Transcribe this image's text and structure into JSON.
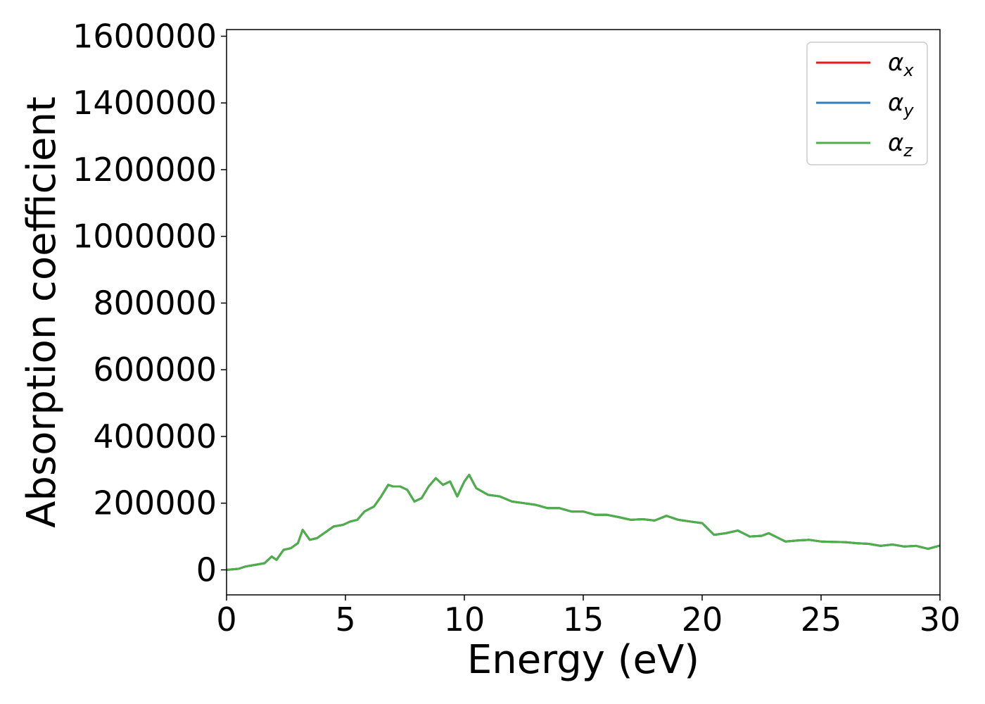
{
  "chart_data": {
    "type": "line",
    "title": "",
    "xlabel": "Energy (eV)",
    "ylabel": "Absorption coefficient",
    "xlim": [
      0,
      30
    ],
    "ylim": [
      -75000,
      1620000
    ],
    "xticks": [
      "0",
      "5",
      "10",
      "15",
      "20",
      "25",
      "30"
    ],
    "yticks": [
      "0",
      "200000",
      "400000",
      "600000",
      "800000",
      "1000000",
      "1200000",
      "1400000",
      "1600000"
    ],
    "grid": false,
    "legend_position": "top-right",
    "series": [
      {
        "name": "α_x",
        "label": "α",
        "sub": "x",
        "color": "#e41a1c",
        "x": [
          0,
          0.5,
          0.8,
          1.2,
          1.6,
          1.9,
          2.1,
          2.4,
          2.7,
          3.0,
          3.2,
          3.5,
          3.8,
          4.1,
          4.5,
          4.9,
          5.2,
          5.5,
          5.8,
          6.2,
          6.5,
          6.8,
          7.0,
          7.3,
          7.6,
          7.9,
          8.2,
          8.5,
          8.8,
          9.1,
          9.4,
          9.7,
          10.0,
          10.2,
          10.5,
          11.0,
          11.5,
          12.0,
          12.5,
          13.0,
          13.5,
          14.0,
          14.5,
          15.0,
          15.5,
          16.0,
          16.5,
          17.0,
          17.5,
          18.0,
          18.5,
          19.0,
          19.5,
          20.0,
          20.5,
          21.0,
          21.5,
          22.0,
          22.5,
          22.8,
          23.5,
          24.0,
          24.5,
          25.0,
          25.5,
          26.0,
          26.5,
          27.0,
          27.5,
          28.0,
          28.5,
          29.0,
          29.5,
          30.0
        ],
        "values": [
          0,
          3000,
          10000,
          15000,
          20000,
          40000,
          30000,
          60000,
          65000,
          80000,
          120000,
          90000,
          95000,
          110000,
          130000,
          135000,
          145000,
          150000,
          175000,
          190000,
          220000,
          255000,
          250000,
          250000,
          240000,
          205000,
          215000,
          250000,
          275000,
          255000,
          265000,
          220000,
          265000,
          285000,
          245000,
          225000,
          220000,
          205000,
          200000,
          195000,
          185000,
          185000,
          175000,
          175000,
          165000,
          165000,
          158000,
          150000,
          152000,
          148000,
          162000,
          150000,
          145000,
          140000,
          105000,
          110000,
          118000,
          100000,
          102000,
          110000,
          85000,
          88000,
          90000,
          85000,
          84000,
          83000,
          80000,
          78000,
          72000,
          76000,
          70000,
          72000,
          63000,
          73000
        ]
      },
      {
        "name": "α_y",
        "label": "α",
        "sub": "y",
        "color": "#377eb8",
        "x": [
          0,
          0.5,
          0.8,
          1.2,
          1.6,
          1.9,
          2.1,
          2.4,
          2.7,
          3.0,
          3.2,
          3.5,
          3.8,
          4.1,
          4.5,
          4.9,
          5.2,
          5.5,
          5.8,
          6.2,
          6.5,
          6.8,
          7.0,
          7.3,
          7.6,
          7.9,
          8.2,
          8.5,
          8.8,
          9.1,
          9.4,
          9.7,
          10.0,
          10.2,
          10.5,
          11.0,
          11.5,
          12.0,
          12.5,
          13.0,
          13.5,
          14.0,
          14.5,
          15.0,
          15.5,
          16.0,
          16.5,
          17.0,
          17.5,
          18.0,
          18.5,
          19.0,
          19.5,
          20.0,
          20.5,
          21.0,
          21.5,
          22.0,
          22.5,
          22.8,
          23.5,
          24.0,
          24.5,
          25.0,
          25.5,
          26.0,
          26.5,
          27.0,
          27.5,
          28.0,
          28.5,
          29.0,
          29.5,
          30.0
        ],
        "values": [
          0,
          3000,
          10000,
          15000,
          20000,
          40000,
          30000,
          60000,
          65000,
          80000,
          120000,
          90000,
          95000,
          110000,
          130000,
          135000,
          145000,
          150000,
          175000,
          190000,
          220000,
          255000,
          250000,
          250000,
          240000,
          205000,
          215000,
          250000,
          275000,
          255000,
          265000,
          220000,
          265000,
          285000,
          245000,
          225000,
          220000,
          205000,
          200000,
          195000,
          185000,
          185000,
          175000,
          175000,
          165000,
          165000,
          158000,
          150000,
          152000,
          148000,
          162000,
          150000,
          145000,
          140000,
          105000,
          110000,
          118000,
          100000,
          102000,
          110000,
          85000,
          88000,
          90000,
          85000,
          84000,
          83000,
          80000,
          78000,
          72000,
          76000,
          70000,
          72000,
          63000,
          73000
        ]
      },
      {
        "name": "α_z",
        "label": "α",
        "sub": "z",
        "color": "#4daf4a",
        "x": [
          0,
          0.5,
          0.8,
          1.2,
          1.6,
          1.9,
          2.1,
          2.4,
          2.7,
          3.0,
          3.2,
          3.5,
          3.8,
          4.1,
          4.5,
          4.9,
          5.2,
          5.5,
          5.8,
          6.2,
          6.5,
          6.8,
          7.0,
          7.3,
          7.6,
          7.9,
          8.2,
          8.5,
          8.8,
          9.1,
          9.4,
          9.7,
          10.0,
          10.2,
          10.5,
          11.0,
          11.5,
          12.0,
          12.5,
          13.0,
          13.5,
          14.0,
          14.5,
          15.0,
          15.5,
          16.0,
          16.5,
          17.0,
          17.5,
          18.0,
          18.5,
          19.0,
          19.5,
          20.0,
          20.5,
          21.0,
          21.5,
          22.0,
          22.5,
          22.8,
          23.5,
          24.0,
          24.5,
          25.0,
          25.5,
          26.0,
          26.5,
          27.0,
          27.5,
          28.0,
          28.5,
          29.0,
          29.5,
          30.0
        ],
        "values": [
          0,
          3000,
          10000,
          15000,
          20000,
          40000,
          30000,
          60000,
          65000,
          80000,
          120000,
          90000,
          95000,
          110000,
          130000,
          135000,
          145000,
          150000,
          175000,
          190000,
          220000,
          255000,
          250000,
          250000,
          240000,
          205000,
          215000,
          250000,
          275000,
          255000,
          265000,
          220000,
          265000,
          285000,
          245000,
          225000,
          220000,
          205000,
          200000,
          195000,
          185000,
          185000,
          175000,
          175000,
          165000,
          165000,
          158000,
          150000,
          152000,
          148000,
          162000,
          150000,
          145000,
          140000,
          105000,
          110000,
          118000,
          100000,
          102000,
          110000,
          85000,
          88000,
          90000,
          85000,
          84000,
          83000,
          80000,
          78000,
          72000,
          76000,
          70000,
          72000,
          63000,
          73000
        ]
      }
    ]
  }
}
